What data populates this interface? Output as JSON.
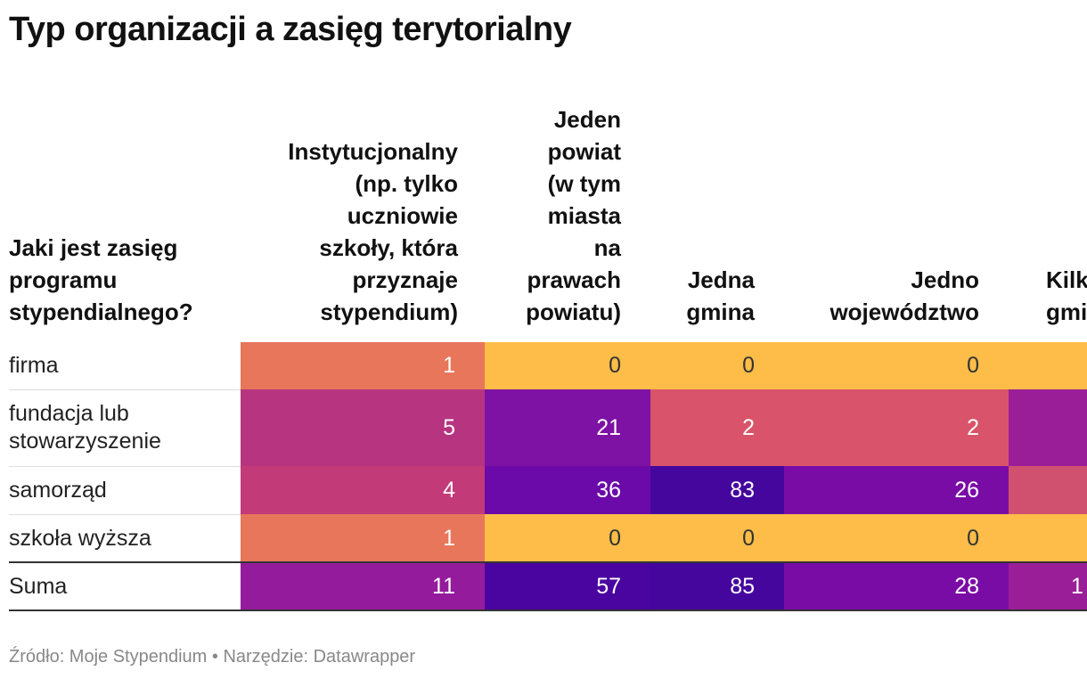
{
  "chart_data": {
    "type": "table",
    "title": "Typ organizacji a zasięg terytorialny",
    "row_header": "Jaki jest zasięg\nprogramu\nstypendialnego?",
    "columns": [
      "Instytucjonalny\n(np. tylko\nuczniowie\nszkoły, która\nprzyznaje\nstypendium)",
      "Jeden\npowiat\n(w tym\nmiasta\nna\nprawach\npowiatu)",
      "Jedna\ngmina",
      "Jedno\nwojewództwo",
      "Kilka\ngmin"
    ],
    "rows": [
      {
        "label": "firma",
        "values": [
          "1",
          "0",
          "0",
          "0",
          ""
        ]
      },
      {
        "label": "fundacja lub\nstowarzyszenie",
        "values": [
          "5",
          "21",
          "2",
          "2",
          ""
        ]
      },
      {
        "label": "samorząd",
        "values": [
          "4",
          "36",
          "83",
          "26",
          ""
        ]
      },
      {
        "label": "szkoła wyższa",
        "values": [
          "1",
          "0",
          "0",
          "0",
          ""
        ]
      },
      {
        "label": "Suma",
        "values": [
          "11",
          "57",
          "85",
          "28",
          "1"
        ]
      }
    ],
    "cell_colors": [
      [
        "#e8765a",
        "#fdbd48",
        "#fdbd48",
        "#fdbd48",
        "#fdbd48"
      ],
      [
        "#b73481",
        "#7e12a5",
        "#d9546a",
        "#d9546a",
        "#9a1e98"
      ],
      [
        "#c23a78",
        "#6b0aa8",
        "#45069d",
        "#7a0ca6",
        "#d05070"
      ],
      [
        "#e8765a",
        "#fdbd48",
        "#fdbd48",
        "#fdbd48",
        "#fdbd48"
      ],
      [
        "#941c9c",
        "#4a049f",
        "#45069d",
        "#7a0ca6",
        "#9a1e98"
      ]
    ]
  },
  "footer": "Źródło: Moje Stypendium • Narzędzie: Datawrapper"
}
